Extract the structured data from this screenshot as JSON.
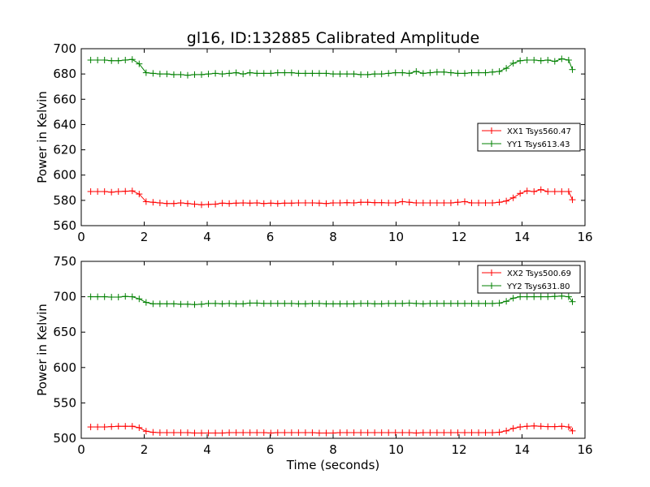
{
  "figure": {
    "title": "gl16, ID:132885 Calibrated Amplitude",
    "xlabel": "Time (seconds)"
  },
  "chart_data": [
    {
      "type": "line",
      "title": "gl16, ID:132885 Calibrated Amplitude",
      "xlabel": "",
      "ylabel": "Power in Kelvin",
      "xlim": [
        0,
        16
      ],
      "ylim": [
        560,
        700
      ],
      "xticks": [
        "0",
        "2",
        "4",
        "6",
        "8",
        "10",
        "12",
        "14",
        "16"
      ],
      "yticks": [
        "560",
        "580",
        "600",
        "620",
        "640",
        "660",
        "680",
        "700"
      ],
      "grid": false,
      "legend_position": "center-right",
      "x": [
        0.3,
        0.52,
        0.74,
        0.96,
        1.18,
        1.4,
        1.62,
        1.84,
        2.06,
        2.28,
        2.5,
        2.72,
        2.94,
        3.16,
        3.38,
        3.6,
        3.82,
        4.04,
        4.26,
        4.48,
        4.7,
        4.92,
        5.14,
        5.36,
        5.58,
        5.8,
        6.02,
        6.24,
        6.46,
        6.68,
        6.9,
        7.12,
        7.34,
        7.56,
        7.78,
        8.0,
        8.22,
        8.44,
        8.66,
        8.88,
        9.1,
        9.32,
        9.54,
        9.76,
        9.98,
        10.2,
        10.42,
        10.64,
        10.86,
        11.08,
        11.3,
        11.52,
        11.74,
        11.96,
        12.18,
        12.4,
        12.62,
        12.84,
        13.06,
        13.28,
        13.5,
        13.72,
        13.94,
        14.16,
        14.38,
        14.6,
        14.82,
        15.04,
        15.26,
        15.48,
        15.6
      ],
      "series": [
        {
          "name": "XX1 Tsys560.47",
          "color": "#ff0000",
          "values": [
            587,
            587,
            587,
            586.5,
            587,
            587.2,
            587.5,
            585,
            579,
            578.5,
            578,
            577.5,
            577.5,
            578,
            577.5,
            577,
            576.5,
            576.8,
            577,
            577.8,
            577.5,
            577.8,
            578,
            577.8,
            578,
            577.5,
            577.8,
            577.5,
            577.8,
            577.8,
            578,
            578,
            578,
            577.8,
            577.5,
            578,
            578,
            578.2,
            578,
            578.5,
            578.5,
            578.2,
            578.2,
            578,
            578,
            579,
            578.5,
            578,
            578,
            578,
            578,
            578,
            578,
            578.5,
            579,
            578,
            578,
            578,
            578,
            578.5,
            579.5,
            582,
            585.5,
            587.5,
            587,
            588.5,
            587,
            587,
            587,
            587,
            580.5
          ]
        },
        {
          "name": "YY1 Tsys613.43",
          "color": "#008000",
          "values": [
            691,
            691,
            691,
            690.5,
            690.5,
            691,
            691.5,
            688,
            681,
            680.5,
            680,
            680,
            679.5,
            679.5,
            679,
            679.5,
            679.5,
            680,
            680.5,
            680,
            680.5,
            681,
            680,
            681,
            680.5,
            680.5,
            680.5,
            681,
            681,
            681,
            680.5,
            680.5,
            680.5,
            680.5,
            680.5,
            680,
            680,
            680,
            680,
            679.5,
            679.5,
            680,
            680,
            680.5,
            681,
            681,
            680.5,
            682,
            680.5,
            681,
            681.5,
            681.5,
            681,
            680.5,
            680.5,
            681,
            681,
            681,
            681.5,
            682,
            684.5,
            688.5,
            690.5,
            691,
            691,
            690.5,
            691,
            690,
            692,
            691,
            683.5
          ]
        }
      ]
    },
    {
      "type": "line",
      "title": "",
      "xlabel": "Time (seconds)",
      "ylabel": "Power in Kelvin",
      "xlim": [
        0,
        16
      ],
      "ylim": [
        500,
        750
      ],
      "xticks": [
        "0",
        "2",
        "4",
        "6",
        "8",
        "10",
        "12",
        "14",
        "16"
      ],
      "yticks": [
        "500",
        "550",
        "600",
        "650",
        "700",
        "750"
      ],
      "grid": false,
      "legend_position": "top-right",
      "x": [
        0.3,
        0.52,
        0.74,
        0.96,
        1.18,
        1.4,
        1.62,
        1.84,
        2.06,
        2.28,
        2.5,
        2.72,
        2.94,
        3.16,
        3.38,
        3.6,
        3.82,
        4.04,
        4.26,
        4.48,
        4.7,
        4.92,
        5.14,
        5.36,
        5.58,
        5.8,
        6.02,
        6.24,
        6.46,
        6.68,
        6.9,
        7.12,
        7.34,
        7.56,
        7.78,
        8.0,
        8.22,
        8.44,
        8.66,
        8.88,
        9.1,
        9.32,
        9.54,
        9.76,
        9.98,
        10.2,
        10.42,
        10.64,
        10.86,
        11.08,
        11.3,
        11.52,
        11.74,
        11.96,
        12.18,
        12.4,
        12.62,
        12.84,
        13.06,
        13.28,
        13.5,
        13.72,
        13.94,
        14.16,
        14.38,
        14.6,
        14.82,
        15.04,
        15.26,
        15.48,
        15.6
      ],
      "series": [
        {
          "name": "XX2 Tsys500.69",
          "color": "#ff0000",
          "values": [
            516,
            516,
            516,
            516.5,
            517,
            517,
            517,
            515,
            510,
            508.5,
            508,
            508,
            508,
            508,
            508,
            507.5,
            507.5,
            507.5,
            507.5,
            507.5,
            508,
            508,
            508,
            508,
            508,
            508,
            507.5,
            508,
            508,
            508,
            508,
            508,
            508,
            507.5,
            507.5,
            507.5,
            508,
            508,
            508,
            508,
            508,
            508,
            508,
            508,
            508,
            508,
            508,
            507.5,
            508,
            508,
            508,
            508,
            508,
            508,
            508,
            508,
            508,
            508,
            508,
            508.5,
            510.5,
            514,
            516,
            517,
            517.5,
            517,
            516.5,
            516.5,
            517,
            516,
            510.5
          ]
        },
        {
          "name": "YY2 Tsys631.80",
          "color": "#008000",
          "values": [
            700,
            700,
            700,
            699.5,
            699.5,
            700.5,
            700,
            697,
            692,
            690,
            690,
            690,
            690,
            689.5,
            689.5,
            689,
            689.5,
            690.5,
            690.5,
            690,
            690.5,
            690,
            690,
            691,
            691,
            690.5,
            690.5,
            690.5,
            690.5,
            690.5,
            690,
            690,
            690.5,
            690.5,
            690,
            690,
            690,
            690,
            690,
            690.5,
            690.5,
            690,
            690,
            690.5,
            690.5,
            690.5,
            691,
            690.5,
            690,
            690.5,
            690.5,
            690.5,
            690.5,
            690.5,
            690.5,
            690.5,
            690.5,
            690.5,
            690.5,
            691,
            693.5,
            698,
            700,
            700,
            700,
            700,
            700,
            700.5,
            701,
            700,
            693
          ]
        }
      ]
    }
  ]
}
